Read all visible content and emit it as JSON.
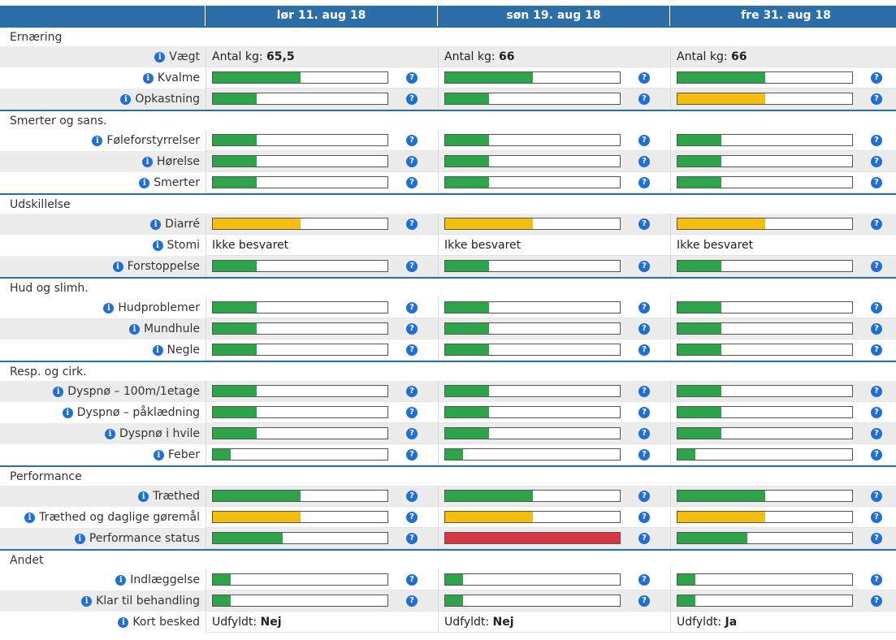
{
  "colors": {
    "header": "#2b6ea8",
    "green": "#2ea44a",
    "yellow": "#f5bd0c",
    "red": "#d93644",
    "info": "#1f6fd8"
  },
  "columns": [
    "lør 11. aug 18",
    "søn 19. aug 18",
    "fre 31. aug 18"
  ],
  "info_glyph": "i",
  "help_glyph": "?",
  "sections": [
    {
      "title": "Ernæring",
      "rows": [
        {
          "label": "Vægt",
          "type": "text",
          "values": [
            {
              "prefix": "Antal kg:",
              "bold": "65,5"
            },
            {
              "prefix": "Antal kg:",
              "bold": "66"
            },
            {
              "prefix": "Antal kg:",
              "bold": "66"
            }
          ]
        },
        {
          "label": "Kvalme",
          "type": "bar",
          "values": [
            {
              "level": 0.5,
              "color": "green"
            },
            {
              "level": 0.5,
              "color": "green"
            },
            {
              "level": 0.5,
              "color": "green"
            }
          ]
        },
        {
          "label": "Opkastning",
          "type": "bar",
          "values": [
            {
              "level": 0.25,
              "color": "green"
            },
            {
              "level": 0.25,
              "color": "green"
            },
            {
              "level": 0.5,
              "color": "yellow"
            }
          ]
        }
      ]
    },
    {
      "title": "Smerter og sans.",
      "rows": [
        {
          "label": "Føleforstyrrelser",
          "type": "bar",
          "values": [
            {
              "level": 0.25,
              "color": "green"
            },
            {
              "level": 0.25,
              "color": "green"
            },
            {
              "level": 0.25,
              "color": "green"
            }
          ]
        },
        {
          "label": "Hørelse",
          "type": "bar",
          "values": [
            {
              "level": 0.25,
              "color": "green"
            },
            {
              "level": 0.25,
              "color": "green"
            },
            {
              "level": 0.25,
              "color": "green"
            }
          ]
        },
        {
          "label": "Smerter",
          "type": "bar",
          "values": [
            {
              "level": 0.25,
              "color": "green"
            },
            {
              "level": 0.25,
              "color": "green"
            },
            {
              "level": 0.25,
              "color": "green"
            }
          ]
        }
      ]
    },
    {
      "title": "Udskillelse",
      "rows": [
        {
          "label": "Diarré",
          "type": "bar",
          "values": [
            {
              "level": 0.5,
              "color": "yellow"
            },
            {
              "level": 0.5,
              "color": "yellow"
            },
            {
              "level": 0.5,
              "color": "yellow"
            }
          ]
        },
        {
          "label": "Stomi",
          "type": "plain",
          "values": [
            "Ikke besvaret",
            "Ikke besvaret",
            "Ikke besvaret"
          ]
        },
        {
          "label": "Forstoppelse",
          "type": "bar",
          "values": [
            {
              "level": 0.25,
              "color": "green"
            },
            {
              "level": 0.25,
              "color": "green"
            },
            {
              "level": 0.25,
              "color": "green"
            }
          ]
        }
      ]
    },
    {
      "title": "Hud og slimh.",
      "rows": [
        {
          "label": "Hudproblemer",
          "type": "bar",
          "values": [
            {
              "level": 0.25,
              "color": "green"
            },
            {
              "level": 0.25,
              "color": "green"
            },
            {
              "level": 0.25,
              "color": "green"
            }
          ]
        },
        {
          "label": "Mundhule",
          "type": "bar",
          "values": [
            {
              "level": 0.25,
              "color": "green"
            },
            {
              "level": 0.25,
              "color": "green"
            },
            {
              "level": 0.25,
              "color": "green"
            }
          ]
        },
        {
          "label": "Negle",
          "type": "bar",
          "values": [
            {
              "level": 0.25,
              "color": "green"
            },
            {
              "level": 0.25,
              "color": "green"
            },
            {
              "level": 0.25,
              "color": "green"
            }
          ]
        }
      ]
    },
    {
      "title": "Resp. og cirk.",
      "rows": [
        {
          "label": "Dyspnø – 100m/1etage",
          "type": "bar",
          "values": [
            {
              "level": 0.25,
              "color": "green"
            },
            {
              "level": 0.25,
              "color": "green"
            },
            {
              "level": 0.25,
              "color": "green"
            }
          ]
        },
        {
          "label": "Dyspnø – påklædning",
          "type": "bar",
          "values": [
            {
              "level": 0.25,
              "color": "green"
            },
            {
              "level": 0.25,
              "color": "green"
            },
            {
              "level": 0.25,
              "color": "green"
            }
          ]
        },
        {
          "label": "Dyspnø i hvile",
          "type": "bar",
          "values": [
            {
              "level": 0.25,
              "color": "green"
            },
            {
              "level": 0.25,
              "color": "green"
            },
            {
              "level": 0.25,
              "color": "green"
            }
          ]
        },
        {
          "label": "Feber",
          "type": "bar",
          "values": [
            {
              "level": 0.1,
              "color": "green"
            },
            {
              "level": 0.1,
              "color": "green"
            },
            {
              "level": 0.1,
              "color": "green"
            }
          ]
        }
      ]
    },
    {
      "title": "Performance",
      "rows": [
        {
          "label": "Træthed",
          "type": "bar",
          "values": [
            {
              "level": 0.5,
              "color": "green"
            },
            {
              "level": 0.5,
              "color": "green"
            },
            {
              "level": 0.5,
              "color": "green"
            }
          ]
        },
        {
          "label": "Træthed og daglige gøremål",
          "type": "bar",
          "values": [
            {
              "level": 0.5,
              "color": "yellow"
            },
            {
              "level": 0.5,
              "color": "yellow"
            },
            {
              "level": 0.5,
              "color": "yellow"
            }
          ]
        },
        {
          "label": "Performance status",
          "type": "bar",
          "values": [
            {
              "level": 0.4,
              "color": "green"
            },
            {
              "level": 1.0,
              "color": "red"
            },
            {
              "level": 0.4,
              "color": "green"
            }
          ]
        }
      ]
    },
    {
      "title": "Andet",
      "rows": [
        {
          "label": "Indlæggelse",
          "type": "bar",
          "values": [
            {
              "level": 0.1,
              "color": "green"
            },
            {
              "level": 0.1,
              "color": "green"
            },
            {
              "level": 0.1,
              "color": "green"
            }
          ]
        },
        {
          "label": "Klar til behandling",
          "type": "bar",
          "values": [
            {
              "level": 0.1,
              "color": "green"
            },
            {
              "level": 0.1,
              "color": "green"
            },
            {
              "level": 0.1,
              "color": "green"
            }
          ]
        },
        {
          "label": "Kort besked",
          "type": "text",
          "values": [
            {
              "prefix": "Udfyldt:",
              "bold": "Nej"
            },
            {
              "prefix": "Udfyldt:",
              "bold": "Nej"
            },
            {
              "prefix": "Udfyldt:",
              "bold": "Ja"
            }
          ]
        }
      ]
    }
  ]
}
